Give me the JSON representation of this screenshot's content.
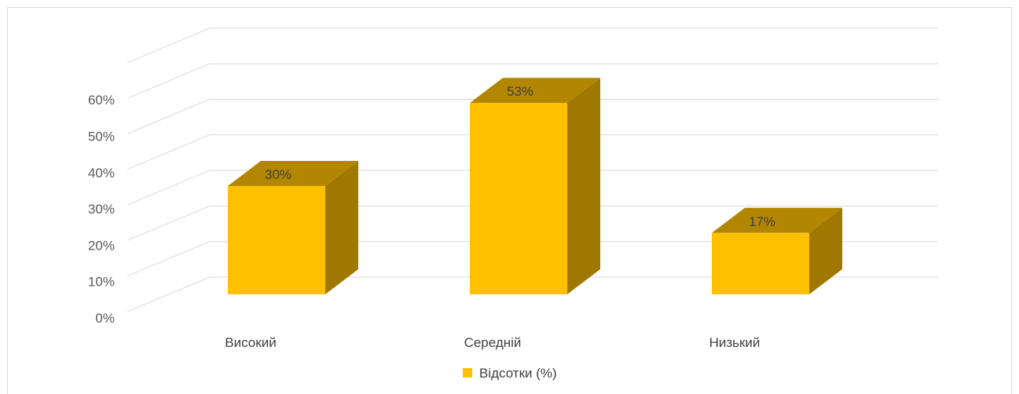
{
  "chart_data": {
    "type": "bar",
    "style": "3d-column",
    "categories": [
      "Високий",
      "Середній",
      "Низький"
    ],
    "series": [
      {
        "name": "Відсотки (%)",
        "values": [
          30,
          53,
          17
        ],
        "labels": [
          "30%",
          "53%",
          "17%"
        ]
      }
    ],
    "y_ticks": [
      "0%",
      "10%",
      "20%",
      "30%",
      "40%",
      "50%",
      "60%"
    ],
    "ylim": [
      0,
      70
    ],
    "grid": true,
    "legend": "bottom",
    "colors": {
      "front": "#ffc000",
      "top": "#b38600",
      "side": "#a07800",
      "grid": "#d9d9d9"
    }
  }
}
